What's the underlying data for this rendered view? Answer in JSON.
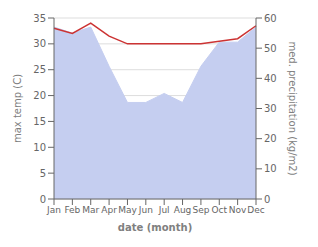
{
  "chart_data": {
    "type": "line",
    "categories": [
      "Jan",
      "Feb",
      "Mar",
      "Apr",
      "May",
      "Jun",
      "Jul",
      "Aug",
      "Sep",
      "Oct",
      "Nov",
      "Dec"
    ],
    "xlabel": "date (month)",
    "ylabel": "max temp (C)",
    "y2label": "med. precipitation (kg/m2)",
    "ylim": [
      0,
      35
    ],
    "yticks": [
      0,
      5,
      10,
      15,
      20,
      25,
      30,
      35
    ],
    "y2lim": [
      0,
      60
    ],
    "y2ticks": [
      0,
      10,
      20,
      30,
      40,
      50,
      60
    ],
    "grid": true,
    "series": [
      {
        "type": "area",
        "axis": "y2",
        "color": "#c5cef0",
        "values": [
          57,
          55,
          57,
          44,
          32,
          32,
          35,
          32,
          44,
          52,
          52,
          57
        ]
      },
      {
        "type": "line",
        "color": "#cc3333",
        "values": [
          33.0,
          32.0,
          34.0,
          31.5,
          30.0,
          30.0,
          30.0,
          30.0,
          30.0,
          30.5,
          31.0,
          33.5
        ]
      }
    ]
  }
}
